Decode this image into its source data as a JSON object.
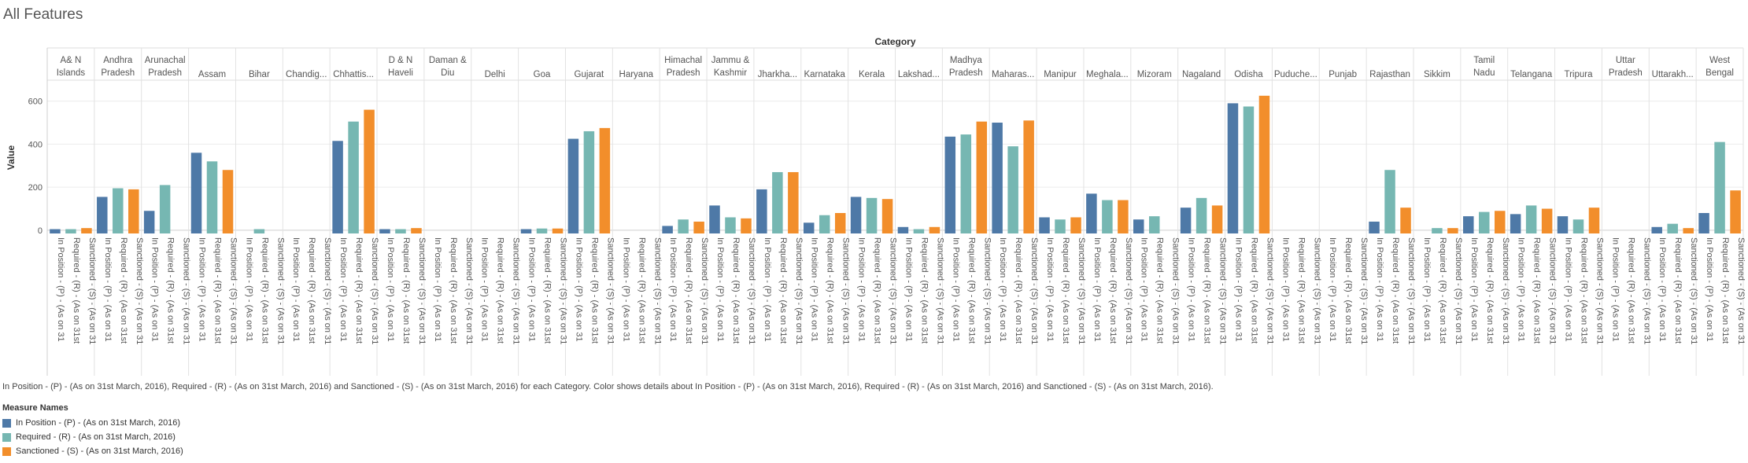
{
  "page": {
    "title": "All Features",
    "caption": "In Position - (P) - (As on 31st March, 2016), Required - (R) - (As on 31st March, 2016) and Sanctioned - (S) - (As on 31st March, 2016) for each Category.  Color shows details about In Position - (P) - (As on 31st March, 2016), Required - (R) - (As on 31st March, 2016) and Sanctioned - (S) - (As on 31st March, 2016)."
  },
  "legend": {
    "title": "Measure Names",
    "items": [
      {
        "label": "In Position - (P) - (As on 31st March, 2016)",
        "color": "#4e79a7"
      },
      {
        "label": "Required - (R) - (As on 31st March, 2016)",
        "color": "#76b7b2"
      },
      {
        "label": "Sanctioned - (S) - (As on 31st March, 2016)",
        "color": "#f28e2b"
      }
    ]
  },
  "chart_data": {
    "type": "bar",
    "title": "Category",
    "ylabel": "Value",
    "xlabel": "",
    "ylim": [
      -15,
      690
    ],
    "yticks": [
      0,
      200,
      400,
      600
    ],
    "grid": true,
    "legend_position": "bottom-left",
    "categories": [
      "A& N Islands",
      "Andhra Pradesh",
      "Arunachal Pradesh",
      "Assam",
      "Bihar",
      "Chandig...",
      "Chhattis...",
      "D & N Haveli",
      "Daman & Diu",
      "Delhi",
      "Goa",
      "Gujarat",
      "Haryana",
      "Himachal Pradesh",
      "Jammu & Kashmir",
      "Jharkha...",
      "Karnataka",
      "Kerala",
      "Lakshad...",
      "Madhya Pradesh",
      "Maharas...",
      "Manipur",
      "Meghala...",
      "Mizoram",
      "Nagaland",
      "Odisha",
      "Puduche...",
      "Punjab",
      "Rajasthan",
      "Sikkim",
      "Tamil Nadu",
      "Telangana",
      "Tripura",
      "Uttar Pradesh",
      "Uttarakh...",
      "West Bengal"
    ],
    "bar_labels": [
      "In Position - (P) - (As on 31",
      "Required - (R) - (As on 31st",
      "Sanctioned - (S) - (As on 31"
    ],
    "series": [
      {
        "name": "In Position - (P) - (As on 31st March, 2016)",
        "values": [
          5,
          155,
          90,
          360,
          0,
          0,
          415,
          5,
          0,
          0,
          5,
          425,
          0,
          20,
          115,
          190,
          35,
          155,
          15,
          435,
          500,
          60,
          170,
          50,
          105,
          590,
          0,
          0,
          40,
          0,
          65,
          75,
          65,
          0,
          15,
          80
        ]
      },
      {
        "name": "Required - (R) - (As on 31st March, 2016)",
        "values": [
          5,
          195,
          210,
          320,
          5,
          0,
          505,
          5,
          0,
          0,
          8,
          460,
          0,
          50,
          60,
          270,
          70,
          150,
          5,
          445,
          390,
          50,
          140,
          65,
          150,
          575,
          0,
          0,
          280,
          10,
          85,
          115,
          50,
          0,
          30,
          410
        ]
      },
      {
        "name": "Sanctioned - (S) - (As on 31st March, 2016)",
        "values": [
          10,
          190,
          0,
          280,
          0,
          0,
          560,
          10,
          0,
          0,
          8,
          475,
          0,
          40,
          55,
          270,
          80,
          145,
          15,
          505,
          510,
          60,
          140,
          0,
          115,
          625,
          0,
          0,
          105,
          10,
          90,
          100,
          105,
          0,
          10,
          185
        ]
      }
    ]
  }
}
